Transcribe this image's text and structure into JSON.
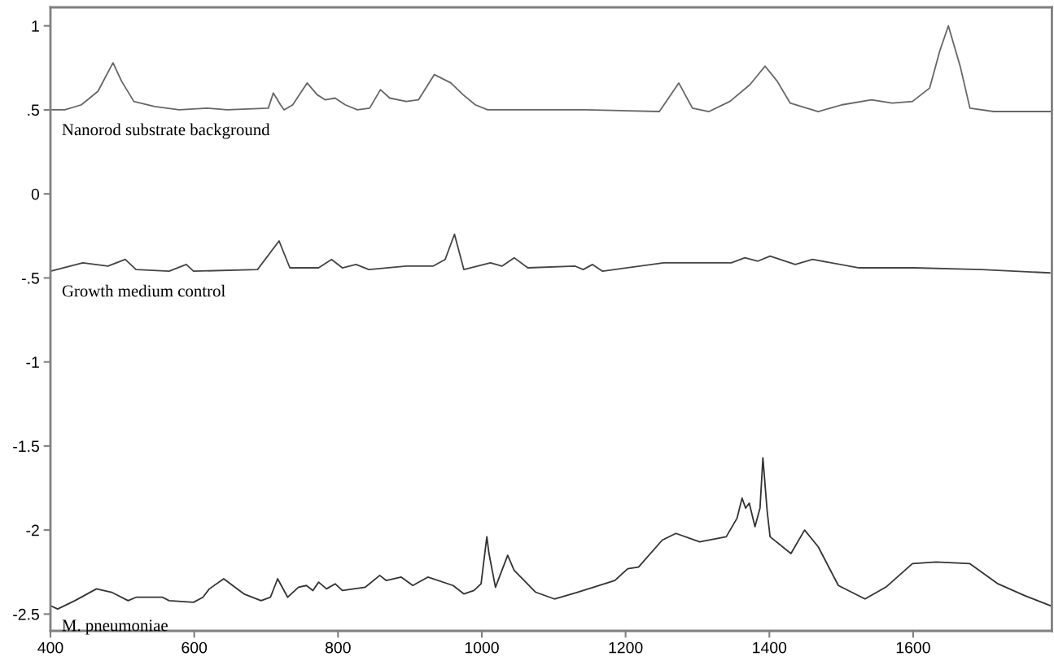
{
  "chart_data": {
    "type": "line",
    "xlim": [
      400,
      1793
    ],
    "ylim": [
      -2.6,
      1.11
    ],
    "xticks": [
      400,
      600,
      800,
      1000,
      1200,
      1400,
      1600
    ],
    "yticks": [
      1,
      {
        "value": 0.5,
        "label": ".5"
      },
      0,
      {
        "value": -0.5,
        "label": "-.5"
      },
      -1,
      -1.5,
      -2,
      -2.5
    ],
    "grid": false,
    "legend": false,
    "marker": "none",
    "line_style": "solid",
    "series": [
      {
        "name": "Nanorod substrate background",
        "color": "#666666",
        "x": [
          400,
          420,
          443,
          466,
          487,
          499,
          516,
          545,
          579,
          618,
          646,
          703,
          710,
          720,
          725,
          737,
          757,
          771,
          782,
          796,
          810,
          827,
          844,
          859,
          872,
          895,
          912,
          934,
          957,
          974,
          991,
          1008,
          1053,
          1144,
          1247,
          1274,
          1293,
          1316,
          1345,
          1373,
          1394,
          1411,
          1429,
          1468,
          1501,
          1542,
          1571,
          1599,
          1623,
          1637,
          1649,
          1666,
          1679,
          1712,
          1791
        ],
        "values": [
          0.5,
          0.5,
          0.53,
          0.61,
          0.78,
          0.67,
          0.55,
          0.52,
          0.5,
          0.51,
          0.5,
          0.51,
          0.6,
          0.53,
          0.5,
          0.53,
          0.66,
          0.59,
          0.56,
          0.57,
          0.53,
          0.5,
          0.51,
          0.62,
          0.57,
          0.55,
          0.56,
          0.71,
          0.66,
          0.59,
          0.53,
          0.5,
          0.5,
          0.5,
          0.49,
          0.66,
          0.51,
          0.49,
          0.55,
          0.65,
          0.76,
          0.67,
          0.54,
          0.49,
          0.53,
          0.56,
          0.54,
          0.55,
          0.63,
          0.85,
          1.0,
          0.75,
          0.51,
          0.49,
          0.49
        ]
      },
      {
        "name": "Growth medium control",
        "color": "#444444",
        "x": [
          400,
          445,
          480,
          504,
          519,
          565,
          589,
          599,
          688,
          718,
          733,
          773,
          791,
          806,
          825,
          843,
          895,
          932,
          949,
          962,
          975,
          1012,
          1028,
          1045,
          1064,
          1130,
          1141,
          1154,
          1168,
          1253,
          1347,
          1366,
          1384,
          1401,
          1436,
          1460,
          1525,
          1601,
          1695,
          1790
        ],
        "values": [
          -0.46,
          -0.41,
          -0.43,
          -0.39,
          -0.45,
          -0.46,
          -0.42,
          -0.46,
          -0.45,
          -0.28,
          -0.44,
          -0.44,
          -0.39,
          -0.44,
          -0.42,
          -0.45,
          -0.43,
          -0.43,
          -0.39,
          -0.24,
          -0.45,
          -0.41,
          -0.43,
          -0.38,
          -0.44,
          -0.43,
          -0.45,
          -0.42,
          -0.46,
          -0.41,
          -0.41,
          -0.38,
          -0.4,
          -0.37,
          -0.42,
          -0.39,
          -0.44,
          -0.44,
          -0.45,
          -0.47
        ]
      },
      {
        "name": "M. pneumoniae",
        "color": "#333333",
        "x": [
          400,
          410,
          434,
          464,
          485,
          508,
          519,
          556,
          565,
          599,
          612,
          621,
          641,
          669,
          693,
          706,
          716,
          730,
          745,
          756,
          765,
          773,
          784,
          796,
          806,
          838,
          858,
          867,
          888,
          904,
          925,
          960,
          975,
          989,
          999,
          1007,
          1010,
          1019,
          1036,
          1045,
          1075,
          1101,
          1133,
          1185,
          1203,
          1218,
          1251,
          1270,
          1303,
          1340,
          1355,
          1362,
          1367,
          1372,
          1380,
          1387,
          1391,
          1397,
          1401,
          1430,
          1449,
          1468,
          1496,
          1533,
          1562,
          1599,
          1632,
          1679,
          1718,
          1755,
          1791
        ],
        "values": [
          -2.45,
          -2.47,
          -2.42,
          -2.35,
          -2.37,
          -2.42,
          -2.4,
          -2.4,
          -2.42,
          -2.43,
          -2.4,
          -2.35,
          -2.29,
          -2.38,
          -2.42,
          -2.4,
          -2.29,
          -2.4,
          -2.34,
          -2.33,
          -2.36,
          -2.31,
          -2.35,
          -2.32,
          -2.36,
          -2.34,
          -2.27,
          -2.3,
          -2.28,
          -2.33,
          -2.28,
          -2.33,
          -2.38,
          -2.36,
          -2.32,
          -2.04,
          -2.14,
          -2.34,
          -2.15,
          -2.24,
          -2.37,
          -2.41,
          -2.37,
          -2.3,
          -2.23,
          -2.22,
          -2.06,
          -2.02,
          -2.07,
          -2.04,
          -1.93,
          -1.81,
          -1.87,
          -1.84,
          -1.98,
          -1.87,
          -1.57,
          -1.89,
          -2.04,
          -2.14,
          -2.0,
          -2.1,
          -2.33,
          -2.41,
          -2.34,
          -2.2,
          -2.19,
          -2.2,
          -2.32,
          -2.39,
          -2.45
        ]
      }
    ]
  }
}
